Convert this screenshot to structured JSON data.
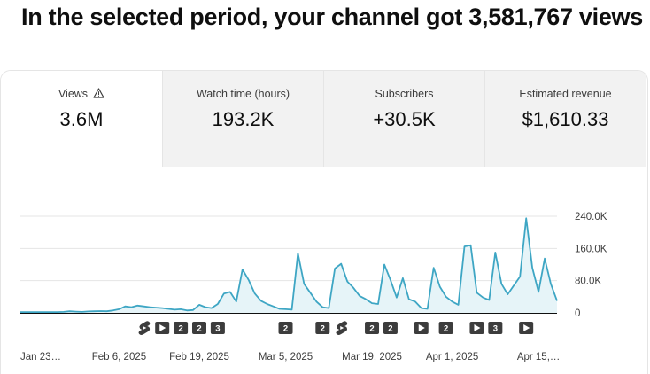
{
  "headline": "In the selected period, your channel got 3,581,767 views",
  "tabs": [
    {
      "label": "Views",
      "value": "3.6M",
      "active": true,
      "icon": "warning-icon"
    },
    {
      "label": "Watch time (hours)",
      "value": "193.2K",
      "active": false
    },
    {
      "label": "Subscribers",
      "value": "+30.5K",
      "active": false
    },
    {
      "label": "Estimated revenue",
      "value": "$1,610.33",
      "active": false
    }
  ],
  "colors": {
    "line": "#3ea6c4",
    "area": "#e6f4f8",
    "grid": "#e5e5e5",
    "marker": "#3c3c3c",
    "baseline": "#0f0f0f"
  },
  "chart_data": {
    "type": "area",
    "y_ticks": [
      "240.0K",
      "160.0K",
      "80.0K",
      "0"
    ],
    "ylim": [
      0,
      240000
    ],
    "x_tick_labels": [
      "Jan 23…",
      "Feb 6, 2025",
      "Feb 19, 2025",
      "Mar 5, 2025",
      "Mar 19, 2025",
      "Apr 1, 2025",
      "Apr 15,…"
    ],
    "x_tick_index": [
      0,
      16,
      29,
      43,
      57,
      70,
      84
    ],
    "values": [
      2000,
      2000,
      2000,
      2000,
      2000,
      2000,
      2000,
      2500,
      4000,
      3000,
      2500,
      3500,
      4000,
      4500,
      4000,
      6000,
      9000,
      16000,
      14000,
      18000,
      16000,
      14000,
      13000,
      12000,
      10000,
      8000,
      9000,
      6000,
      7000,
      20000,
      14000,
      12000,
      22000,
      48000,
      52000,
      28000,
      108000,
      82000,
      48000,
      30000,
      22000,
      16000,
      10000,
      9000,
      8000,
      148000,
      72000,
      50000,
      28000,
      14000,
      12000,
      110000,
      122000,
      78000,
      62000,
      42000,
      34000,
      24000,
      22000,
      120000,
      82000,
      38000,
      86000,
      34000,
      28000,
      12000,
      10000,
      112000,
      65000,
      40000,
      28000,
      20000,
      165000,
      168000,
      50000,
      38000,
      32000,
      150000,
      72000,
      46000,
      68000,
      90000,
      235000,
      112000,
      52000,
      135000,
      72000,
      30000
    ],
    "legend": "none",
    "grid": true
  },
  "markers": [
    {
      "kind": "short-icon",
      "index": 20,
      "text": ""
    },
    {
      "kind": "play",
      "index": 23,
      "text": ""
    },
    {
      "kind": "number",
      "index": 26,
      "text": "2"
    },
    {
      "kind": "number",
      "index": 29,
      "text": "2"
    },
    {
      "kind": "number",
      "index": 32,
      "text": "3"
    },
    {
      "kind": "number",
      "index": 43,
      "text": "2"
    },
    {
      "kind": "number",
      "index": 49,
      "text": "2"
    },
    {
      "kind": "short-icon",
      "index": 52,
      "text": ""
    },
    {
      "kind": "number",
      "index": 57,
      "text": "2"
    },
    {
      "kind": "number",
      "index": 60,
      "text": "2"
    },
    {
      "kind": "play",
      "index": 65,
      "text": ""
    },
    {
      "kind": "number",
      "index": 69,
      "text": "2"
    },
    {
      "kind": "play",
      "index": 74,
      "text": ""
    },
    {
      "kind": "number",
      "index": 77,
      "text": "3"
    },
    {
      "kind": "play",
      "index": 82,
      "text": ""
    }
  ]
}
